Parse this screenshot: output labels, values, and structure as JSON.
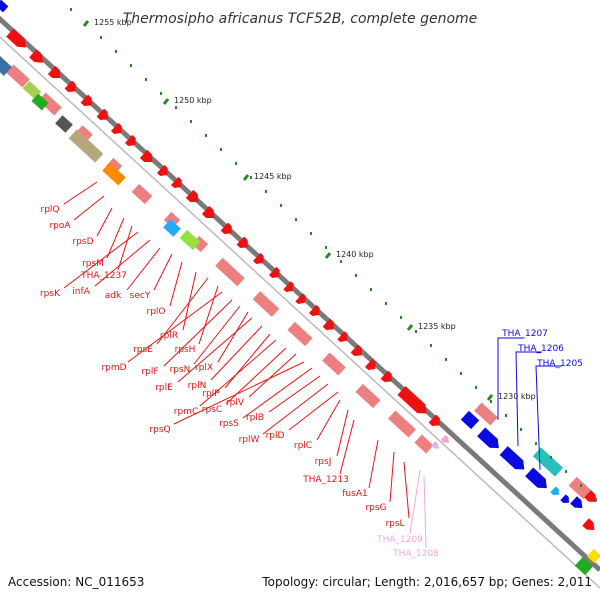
{
  "title": "Thermosipho africanus TCF52B, complete genome",
  "footer": {
    "accession": "Accession: NC_011653",
    "summary": "Topology: circular; Length: 2,016,657 bp; Genes: 2,011"
  },
  "ticks": [
    {
      "label": "1255 kbp"
    },
    {
      "label": "1250 kbp"
    },
    {
      "label": "1245 kbp"
    },
    {
      "label": "1240 kbp"
    },
    {
      "label": "1235 kbp"
    },
    {
      "label": "1230 kbp"
    }
  ],
  "colors": {
    "red": "#ee1111",
    "pink": "#ec8080",
    "blue": "#0a0ae0",
    "teal": "#29bfbf",
    "lightpink": "#f4a8d8",
    "track": "#7a7a7a",
    "green": "#228b22"
  },
  "labels": {
    "red": [
      "rplQ",
      "rpoA",
      "rpsD",
      "rpsM",
      "THA_1237",
      "rpsK",
      "infA",
      "adk",
      "secY",
      "rplO",
      "rplR",
      "rpsE",
      "rpsH",
      "rpmD",
      "rplF",
      "rpsN",
      "rplX",
      "rplE",
      "rplN",
      "rplP",
      "rpmC",
      "rpsC",
      "rplV",
      "rpsQ",
      "rpsS",
      "rplB",
      "rplW",
      "rplD",
      "rplC",
      "rpsJ",
      "THA_1213",
      "fusA1",
      "rpsG",
      "rpsL"
    ],
    "pink": [
      "THA_1209",
      "THA_1208"
    ],
    "blue": [
      "THA_1207",
      "THA_1206",
      "THA_1205"
    ]
  }
}
